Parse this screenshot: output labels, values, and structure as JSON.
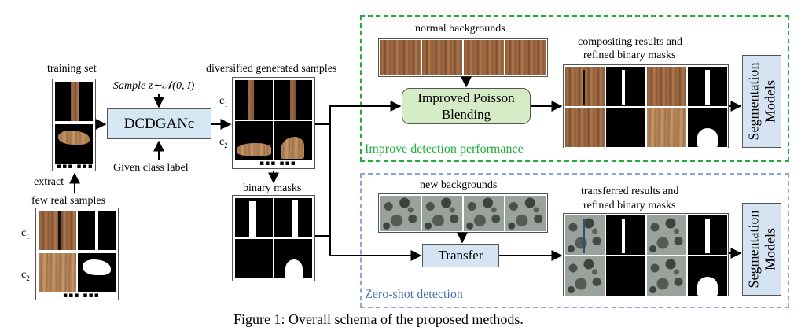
{
  "labels": {
    "training_set": "training set",
    "extract": "extract",
    "few_real_samples": "few real samples",
    "sample_z": "Sample z∼𝒩(0, I)",
    "dcdganc": "DCDGANc",
    "given_class_label": "Given class label",
    "diversified_generated_samples": "diversified generated samples",
    "binary_masks": "binary masks",
    "normal_backgrounds": "normal backgrounds",
    "improved_poisson_blending_line1": "Improved Poisson",
    "improved_poisson_blending_line2": "Blending",
    "compositing_results_line1": "compositing results and",
    "compositing_results_line2": "refined binary masks",
    "segmentation_models_line1": "Segmentation",
    "segmentation_models_line2": "Models",
    "improve_detection_performance": "Improve detection performance",
    "new_backgrounds": "new backgrounds",
    "transfer": "Transfer",
    "transferred_results_line1": "transferred results and",
    "transferred_results_line2": "refined binary masks",
    "zero_shot_detection": "Zero-shot detection",
    "c1": "c",
    "c2": "c",
    "sub1": "1",
    "sub2": "2",
    "dots": "▪▪▪ ▪▪▪",
    "caption": "Figure 1: Overall schema of the proposed methods."
  },
  "colors": {
    "green_dash": "#1fae3a",
    "blue_dash": "#8ea6cf",
    "green_text": "#1fae3a",
    "blue_text": "#4a6fb0",
    "green_box": "#d5ecc6",
    "blue_box": "#d6e3f3"
  }
}
